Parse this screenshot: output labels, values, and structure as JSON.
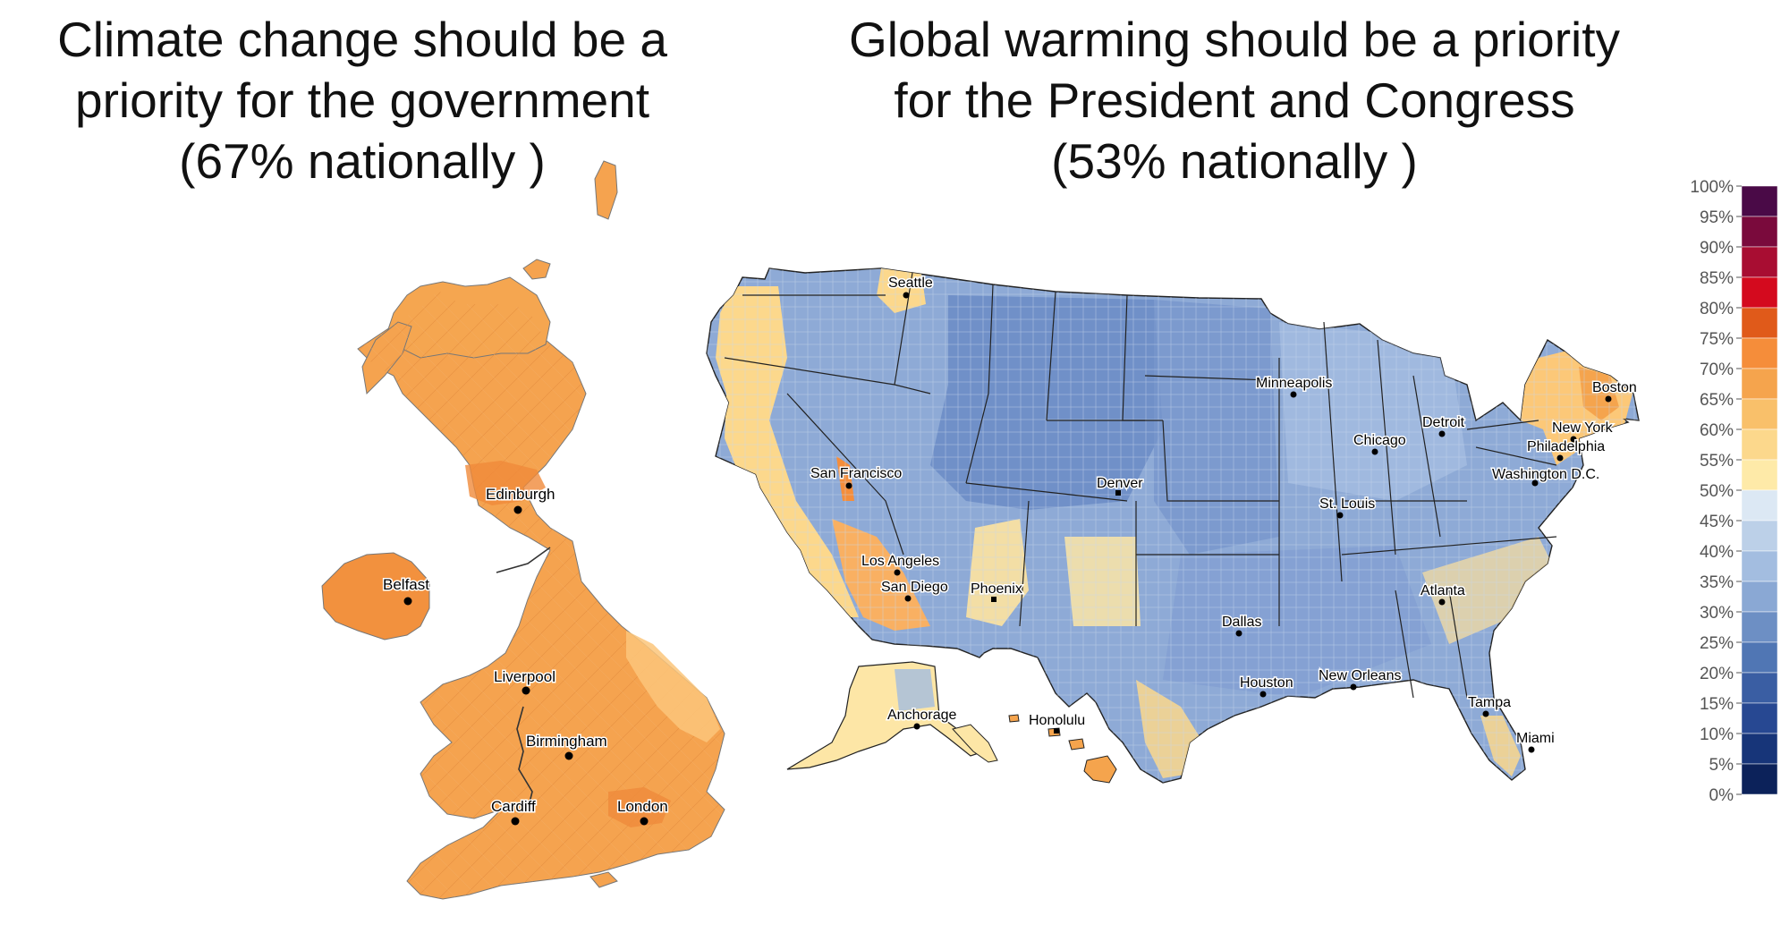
{
  "uk_map": {
    "title_lines": [
      "Climate change should be a",
      "priority for the government",
      "(67% nationally )"
    ],
    "cities": [
      {
        "name": "Edinburgh"
      },
      {
        "name": "Belfast"
      },
      {
        "name": "Liverpool"
      },
      {
        "name": "Birmingham"
      },
      {
        "name": "Cardiff"
      },
      {
        "name": "London"
      }
    ]
  },
  "us_map": {
    "title_lines": [
      "Global warming should be a priority",
      "for the President and Congress",
      "(53% nationally )"
    ],
    "cities": [
      {
        "name": "Seattle"
      },
      {
        "name": "San Francisco"
      },
      {
        "name": "Los Angeles"
      },
      {
        "name": "San Diego"
      },
      {
        "name": "Phoenix"
      },
      {
        "name": "Denver"
      },
      {
        "name": "Minneapolis"
      },
      {
        "name": "Chicago"
      },
      {
        "name": "Detroit"
      },
      {
        "name": "St. Louis"
      },
      {
        "name": "Dallas"
      },
      {
        "name": "Houston"
      },
      {
        "name": "New Orleans"
      },
      {
        "name": "Atlanta"
      },
      {
        "name": "Tampa"
      },
      {
        "name": "Miami"
      },
      {
        "name": "Boston"
      },
      {
        "name": "New York"
      },
      {
        "name": "Philadelphia"
      },
      {
        "name": "Washington D.C."
      },
      {
        "name": "Anchorage"
      },
      {
        "name": "Honolulu"
      }
    ]
  },
  "legend": {
    "ticks": [
      "100%",
      "95%",
      "90%",
      "85%",
      "80%",
      "75%",
      "70%",
      "65%",
      "60%",
      "55%",
      "50%",
      "45%",
      "40%",
      "35%",
      "30%",
      "25%",
      "20%",
      "15%",
      "10%",
      "5%",
      "0%"
    ],
    "colors": [
      "#4a0a47",
      "#7a0a3c",
      "#a80d32",
      "#d40a1e",
      "#e05a1a",
      "#f58d3a",
      "#f5a44d",
      "#f9c06a",
      "#fcd88c",
      "#feeaa8",
      "#dce8f4",
      "#bcd0e8",
      "#a3bde0",
      "#8aa8d4",
      "#6d8fc4",
      "#5076b4",
      "#3a5ea3",
      "#274892",
      "#173579",
      "#0c225a"
    ]
  }
}
